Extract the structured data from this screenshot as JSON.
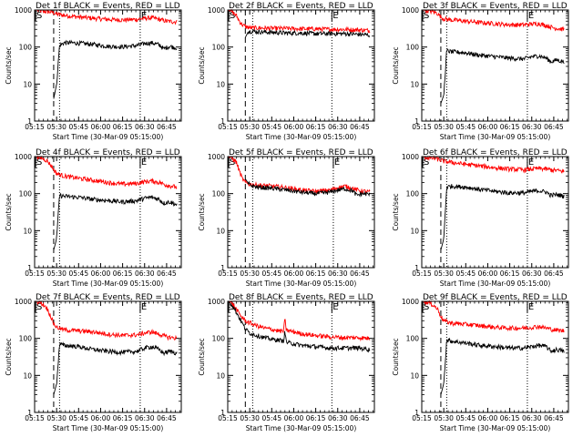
{
  "chart_data": [
    {
      "type": "line",
      "title": "Det 1f BLACK = Events, RED = LLD",
      "xlabel": "Start Time (30-Mar-09 05:15:00)",
      "ylabel": "Counts/sec",
      "x_ticks": [
        "05:15",
        "05:30",
        "05:45",
        "06:00",
        "06:15",
        "06:30",
        "06:45"
      ],
      "y_ticks": [
        "1",
        "10",
        "100",
        "1000"
      ],
      "y_scale": "log",
      "ylim": [
        1,
        1000
      ],
      "xlim_minutes": [
        0,
        100
      ],
      "start_flag": "S",
      "end_flag": "E",
      "start_flag_min": 0,
      "end_flag_min": 72,
      "dashed_min": 13,
      "dotted_min": [
        17,
        72
      ],
      "series": [
        {
          "color": "#000000",
          "x": [
            13,
            15,
            17,
            20,
            25,
            30,
            40,
            50,
            60,
            70,
            75,
            80,
            85,
            88,
            92,
            97
          ],
          "y": [
            4,
            10,
            110,
            130,
            130,
            128,
            118,
            105,
            102,
            110,
            125,
            130,
            115,
            90,
            105,
            95
          ]
        },
        {
          "color": "#ff0000",
          "x": [
            0,
            4,
            8,
            11,
            13,
            15,
            20,
            30,
            40,
            50,
            60,
            70,
            75,
            80,
            85,
            90,
            97
          ],
          "y": [
            1000,
            950,
            900,
            880,
            850,
            780,
            720,
            650,
            600,
            560,
            540,
            560,
            600,
            620,
            560,
            500,
            480
          ]
        }
      ]
    },
    {
      "type": "line",
      "title": "Det 2f BLACK = Events, RED = LLD",
      "xlabel": "Start Time (30-Mar-09 05:15:00)",
      "ylabel": "Counts/sec",
      "x_ticks": [
        "05:15",
        "05:30",
        "05:45",
        "06:00",
        "06:15",
        "06:30",
        "06:45"
      ],
      "y_ticks": [
        "1",
        "10",
        "100",
        "1000"
      ],
      "y_scale": "log",
      "ylim": [
        1,
        1000
      ],
      "xlim_minutes": [
        0,
        100
      ],
      "start_flag": "S",
      "end_flag": "E",
      "start_flag_min": 0,
      "end_flag_min": 71,
      "dashed_min": 12,
      "dotted_min": [
        17,
        71
      ],
      "series": [
        {
          "color": "#000000",
          "x": [
            12,
            14,
            16,
            20,
            30,
            40,
            50,
            60,
            70,
            80,
            90,
            97
          ],
          "y": [
            180,
            260,
            270,
            260,
            250,
            240,
            240,
            230,
            230,
            230,
            220,
            210
          ]
        },
        {
          "color": "#ff0000",
          "x": [
            0,
            3,
            6,
            8,
            10,
            12,
            14,
            16,
            20,
            30,
            40,
            50,
            60,
            70,
            80,
            90,
            97
          ],
          "y": [
            1000,
            900,
            700,
            500,
            400,
            360,
            340,
            330,
            330,
            320,
            320,
            310,
            310,
            300,
            300,
            290,
            280
          ]
        }
      ]
    },
    {
      "type": "line",
      "title": "Det 3f BLACK = Events, RED = LLD",
      "xlabel": "Start Time (30-Mar-09 05:15:00)",
      "ylabel": "Counts/sec",
      "x_ticks": [
        "05:15",
        "05:30",
        "05:45",
        "06:00",
        "06:15",
        "06:30",
        "06:45"
      ],
      "y_ticks": [
        "1",
        "10",
        "100",
        "1000"
      ],
      "y_scale": "log",
      "ylim": [
        1,
        1000
      ],
      "xlim_minutes": [
        0,
        100
      ],
      "start_flag": "S",
      "end_flag": "E",
      "start_flag_min": 0,
      "end_flag_min": 72,
      "dashed_min": 13,
      "dotted_min": [
        17,
        72
      ],
      "series": [
        {
          "color": "#000000",
          "x": [
            13,
            15,
            17,
            20,
            30,
            40,
            50,
            60,
            70,
            75,
            80,
            85,
            88,
            92,
            97
          ],
          "y": [
            3,
            5,
            80,
            75,
            70,
            60,
            55,
            50,
            48,
            55,
            58,
            50,
            40,
            45,
            40
          ]
        },
        {
          "color": "#ff0000",
          "x": [
            0,
            4,
            8,
            11,
            13,
            15,
            20,
            30,
            40,
            50,
            60,
            70,
            75,
            80,
            85,
            90,
            97
          ],
          "y": [
            1000,
            950,
            900,
            800,
            650,
            580,
            540,
            500,
            460,
            430,
            400,
            400,
            420,
            430,
            380,
            330,
            300
          ]
        }
      ]
    },
    {
      "type": "line",
      "title": "Det 4f BLACK = Events, RED = LLD",
      "xlabel": "Start Time (30-Mar-09 05:15:00)",
      "ylabel": "Counts/sec",
      "x_ticks": [
        "05:15",
        "05:30",
        "05:45",
        "06:00",
        "06:15",
        "06:30",
        "06:45"
      ],
      "y_ticks": [
        "1",
        "10",
        "100",
        "1000"
      ],
      "y_scale": "log",
      "ylim": [
        1,
        1000
      ],
      "xlim_minutes": [
        0,
        100
      ],
      "start_flag": "S",
      "end_flag": "E",
      "start_flag_min": 0,
      "end_flag_min": 72,
      "dashed_min": 13,
      "dotted_min": [
        17,
        72
      ],
      "series": [
        {
          "color": "#000000",
          "x": [
            13,
            15,
            17,
            20,
            30,
            40,
            50,
            60,
            70,
            75,
            80,
            85,
            88,
            92,
            97
          ],
          "y": [
            3,
            6,
            90,
            85,
            80,
            70,
            65,
            60,
            65,
            75,
            80,
            70,
            55,
            60,
            50
          ]
        },
        {
          "color": "#ff0000",
          "x": [
            0,
            4,
            8,
            11,
            13,
            15,
            20,
            30,
            40,
            50,
            60,
            70,
            75,
            80,
            85,
            90,
            97
          ],
          "y": [
            1000,
            950,
            800,
            600,
            450,
            350,
            300,
            260,
            230,
            200,
            180,
            190,
            210,
            220,
            200,
            170,
            150
          ]
        }
      ]
    },
    {
      "type": "line",
      "title": "Det 5f BLACK = Events, RED = LLD",
      "xlabel": "Start Time (30-Mar-09 05:15:00)",
      "ylabel": "Counts/sec",
      "x_ticks": [
        "05:15",
        "05:30",
        "05:45",
        "06:00",
        "06:15",
        "06:30",
        "06:45"
      ],
      "y_ticks": [
        "1",
        "10",
        "100",
        "1000"
      ],
      "y_scale": "log",
      "ylim": [
        1,
        1000
      ],
      "xlim_minutes": [
        0,
        100
      ],
      "start_flag": "S",
      "end_flag": "E",
      "start_flag_min": 0,
      "end_flag_min": 72,
      "dashed_min": 12,
      "dotted_min": [
        17,
        72
      ],
      "series": [
        {
          "color": "#000000",
          "x": [
            12,
            15,
            20,
            30,
            40,
            50,
            60,
            70,
            75,
            80,
            85,
            88,
            92,
            97
          ],
          "y": [
            250,
            170,
            150,
            140,
            125,
            110,
            100,
            110,
            125,
            135,
            120,
            90,
            100,
            95
          ]
        },
        {
          "color": "#ff0000",
          "x": [
            0,
            3,
            6,
            8,
            10,
            12,
            15,
            20,
            30,
            40,
            50,
            60,
            70,
            75,
            80,
            85,
            90,
            97
          ],
          "y": [
            1000,
            900,
            700,
            400,
            250,
            200,
            180,
            170,
            160,
            145,
            125,
            115,
            125,
            145,
            160,
            140,
            120,
            110
          ]
        }
      ]
    },
    {
      "type": "line",
      "title": "Det 6f BLACK = Events, RED = LLD",
      "xlabel": "Start Time (30-Mar-09 05:15:00)",
      "ylabel": "Counts/sec",
      "x_ticks": [
        "05:15",
        "05:30",
        "05:45",
        "06:00",
        "06:15",
        "06:30",
        "06:45"
      ],
      "y_ticks": [
        "1",
        "10",
        "100",
        "1000"
      ],
      "y_scale": "log",
      "ylim": [
        1,
        1000
      ],
      "xlim_minutes": [
        0,
        100
      ],
      "start_flag": "S",
      "end_flag": "E",
      "start_flag_min": 0,
      "end_flag_min": 72,
      "dashed_min": 13,
      "dotted_min": [
        17,
        72
      ],
      "series": [
        {
          "color": "#000000",
          "x": [
            13,
            15,
            17,
            20,
            30,
            40,
            50,
            60,
            70,
            75,
            80,
            85,
            88,
            92,
            97
          ],
          "y": [
            3,
            6,
            150,
            160,
            150,
            130,
            115,
            105,
            105,
            115,
            120,
            110,
            90,
            95,
            85
          ]
        },
        {
          "color": "#ff0000",
          "x": [
            0,
            4,
            8,
            11,
            13,
            15,
            20,
            30,
            40,
            50,
            60,
            70,
            75,
            80,
            85,
            90,
            97
          ],
          "y": [
            1000,
            950,
            900,
            850,
            800,
            750,
            700,
            620,
            560,
            500,
            460,
            440,
            460,
            480,
            460,
            430,
            400
          ]
        }
      ]
    },
    {
      "type": "line",
      "title": "Det 7f BLACK = Events, RED = LLD",
      "xlabel": "Start Time (30-Mar-09 05:15:00)",
      "ylabel": "Counts/sec",
      "x_ticks": [
        "05:15",
        "05:30",
        "05:45",
        "06:00",
        "06:15",
        "06:30",
        "06:45"
      ],
      "y_ticks": [
        "1",
        "10",
        "100",
        "1000"
      ],
      "y_scale": "log",
      "ylim": [
        1,
        1000
      ],
      "xlim_minutes": [
        0,
        100
      ],
      "start_flag": "S",
      "end_flag": "E",
      "start_flag_min": 0,
      "end_flag_min": 72,
      "dashed_min": 13,
      "dotted_min": [
        17,
        72
      ],
      "series": [
        {
          "color": "#000000",
          "x": [
            13,
            15,
            17,
            20,
            30,
            40,
            50,
            60,
            70,
            75,
            80,
            85,
            88,
            92,
            97
          ],
          "y": [
            3,
            6,
            70,
            65,
            60,
            50,
            45,
            42,
            45,
            55,
            60,
            50,
            40,
            45,
            40
          ]
        },
        {
          "color": "#ff0000",
          "x": [
            0,
            4,
            8,
            11,
            13,
            15,
            20,
            30,
            40,
            50,
            60,
            70,
            75,
            80,
            85,
            90,
            97
          ],
          "y": [
            1000,
            950,
            700,
            400,
            250,
            200,
            170,
            160,
            150,
            130,
            120,
            125,
            140,
            150,
            130,
            110,
            100
          ]
        }
      ]
    },
    {
      "type": "line",
      "title": "Det 8f BLACK = Events, RED = LLD",
      "xlabel": "Start Time (30-Mar-09 05:15:00)",
      "ylabel": "Counts/sec",
      "x_ticks": [
        "05:15",
        "05:30",
        "05:45",
        "06:00",
        "06:15",
        "06:30",
        "06:45"
      ],
      "y_ticks": [
        "1",
        "10",
        "100",
        "1000"
      ],
      "y_scale": "log",
      "ylim": [
        1,
        1000
      ],
      "xlim_minutes": [
        0,
        100
      ],
      "start_flag": "S",
      "end_flag": "E",
      "start_flag_min": 0,
      "end_flag_min": 71,
      "dashed_min": 12,
      "dotted_min": [
        17,
        71
      ],
      "series": [
        {
          "color": "#000000",
          "x": [
            0,
            3,
            6,
            9,
            12,
            15,
            20,
            25,
            30,
            35,
            38,
            39,
            40,
            42,
            45,
            50,
            60,
            70,
            80,
            90,
            97
          ],
          "y": [
            1000,
            800,
            500,
            300,
            180,
            140,
            120,
            105,
            95,
            90,
            85,
            150,
            80,
            75,
            72,
            65,
            60,
            55,
            55,
            55,
            50
          ]
        },
        {
          "color": "#ff0000",
          "x": [
            0,
            3,
            6,
            9,
            12,
            15,
            20,
            25,
            30,
            35,
            38,
            39,
            40,
            42,
            45,
            50,
            60,
            70,
            80,
            90,
            97
          ],
          "y": [
            1000,
            900,
            600,
            400,
            300,
            260,
            220,
            190,
            175,
            160,
            155,
            330,
            165,
            160,
            150,
            135,
            120,
            110,
            105,
            105,
            100
          ]
        }
      ]
    },
    {
      "type": "line",
      "title": "Det 9f BLACK = Events, RED = LLD",
      "xlabel": "Start Time (30-Mar-09 05:15:00)",
      "ylabel": "Counts/sec",
      "x_ticks": [
        "05:15",
        "05:30",
        "05:45",
        "06:00",
        "06:15",
        "06:30",
        "06:45"
      ],
      "y_ticks": [
        "1",
        "10",
        "100",
        "1000"
      ],
      "y_scale": "log",
      "ylim": [
        1,
        1000
      ],
      "xlim_minutes": [
        0,
        100
      ],
      "start_flag": "S",
      "end_flag": "E",
      "start_flag_min": 0,
      "end_flag_min": 72,
      "dashed_min": 13,
      "dotted_min": [
        17,
        72
      ],
      "series": [
        {
          "color": "#000000",
          "x": [
            13,
            15,
            17,
            20,
            30,
            40,
            50,
            60,
            70,
            75,
            80,
            85,
            88,
            92,
            97
          ],
          "y": [
            3,
            6,
            90,
            85,
            75,
            65,
            60,
            55,
            55,
            60,
            65,
            60,
            45,
            50,
            45
          ]
        },
        {
          "color": "#ff0000",
          "x": [
            0,
            4,
            8,
            11,
            13,
            15,
            20,
            30,
            40,
            50,
            60,
            70,
            75,
            80,
            85,
            90,
            97
          ],
          "y": [
            1000,
            950,
            800,
            600,
            400,
            300,
            260,
            240,
            220,
            200,
            190,
            190,
            200,
            210,
            190,
            170,
            160
          ]
        }
      ]
    }
  ]
}
